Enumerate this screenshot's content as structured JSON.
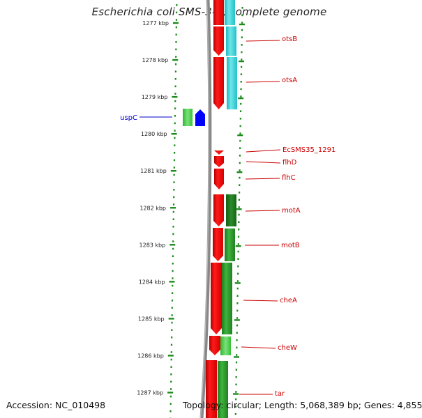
{
  "title": "Escherichia coli SMS-3-5, complete genome",
  "footer": {
    "accession_label": "Accession:",
    "accession": "NC_010498",
    "topology_label": "Topology:",
    "topology": "circular",
    "length_label": "Length:",
    "length": "5,068,389 bp",
    "genes_label": "Genes:",
    "genes": "4,855"
  },
  "colors": {
    "forward_gene": "#ff0000",
    "reverse_gene": "#228b22",
    "other_gene_label": "#0000cc",
    "tick": "#1a8a1a",
    "backbone": "#888888",
    "highlight_teal": "#2ecfd6"
  },
  "ruler": {
    "unit": "kbp",
    "labels": [
      "1277 kbp",
      "1278 kbp",
      "1279 kbp",
      "1280 kbp",
      "1281 kbp",
      "1282 kbp",
      "1283 kbp",
      "1284 kbp",
      "1285 kbp",
      "1286 kbp",
      "1287 kbp"
    ]
  },
  "genes": [
    {
      "name": "otsB",
      "strand": "forward"
    },
    {
      "name": "otsA",
      "strand": "forward"
    },
    {
      "name": "uspC",
      "strand": "other"
    },
    {
      "name": "EcSMS35_1291",
      "strand": "forward"
    },
    {
      "name": "flhD",
      "strand": "forward"
    },
    {
      "name": "flhC",
      "strand": "forward"
    },
    {
      "name": "motA",
      "strand": "forward"
    },
    {
      "name": "motB",
      "strand": "forward"
    },
    {
      "name": "cheA",
      "strand": "forward"
    },
    {
      "name": "cheW",
      "strand": "forward"
    },
    {
      "name": "tar",
      "strand": "forward"
    }
  ]
}
